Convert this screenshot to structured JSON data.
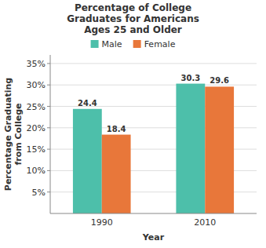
{
  "chart_data": {
    "type": "bar",
    "title": "Percentage of College\nGraduates for Americans\nAges 25 and Older",
    "xlabel": "Year",
    "ylabel": "Percentage Graduating\nfrom College",
    "categories": [
      "1990",
      "2010"
    ],
    "series": [
      {
        "name": "Male",
        "color": "#4dbfaa",
        "values": [
          24.4,
          30.3
        ]
      },
      {
        "name": "Female",
        "color": "#e8773a",
        "values": [
          18.4,
          29.6
        ]
      }
    ],
    "ylim": [
      0,
      37
    ],
    "yticks": [
      {
        "value": 5,
        "label": "5%"
      },
      {
        "value": 10,
        "label": "10%"
      },
      {
        "value": 15,
        "label": "15%"
      },
      {
        "value": 20,
        "label": "20%"
      },
      {
        "value": 25,
        "label": "25%"
      },
      {
        "value": 30,
        "label": "30%"
      },
      {
        "value": 35,
        "label": "35%"
      }
    ],
    "grid": true,
    "legend": "top",
    "data_labels": true
  }
}
